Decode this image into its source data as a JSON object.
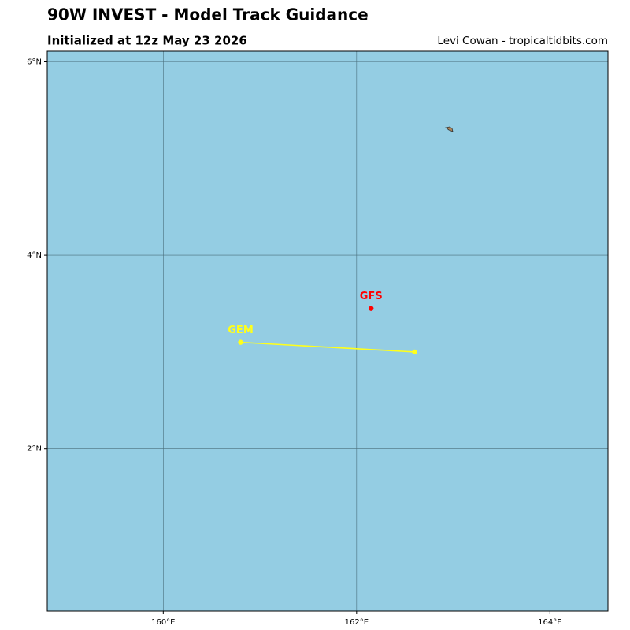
{
  "chart_data": {
    "type": "line",
    "title": "90W INVEST - Model Track Guidance",
    "subtitle": "Initialized at 12z May 23 2026",
    "credit": "Levi Cowan - tropicaltidbits.com",
    "xlim": [
      158.8,
      164.6
    ],
    "ylim": [
      0.32,
      6.11
    ],
    "xticks": [
      {
        "value": 160,
        "label": "160°E"
      },
      {
        "value": 162,
        "label": "162°E"
      },
      {
        "value": 164,
        "label": "164°E"
      }
    ],
    "yticks": [
      {
        "value": 2,
        "label": "2°N"
      },
      {
        "value": 4,
        "label": "4°N"
      },
      {
        "value": 6,
        "label": "6°N"
      }
    ],
    "grid": true,
    "background": "#94cde3",
    "series": [
      {
        "name": "GEM",
        "color": "#ffff1a",
        "x": [
          160.8,
          162.6
        ],
        "values": [
          3.1,
          3.0
        ]
      },
      {
        "name": "GFS",
        "color": "#ff0000",
        "x": [
          162.15
        ],
        "values": [
          3.45
        ]
      }
    ]
  }
}
